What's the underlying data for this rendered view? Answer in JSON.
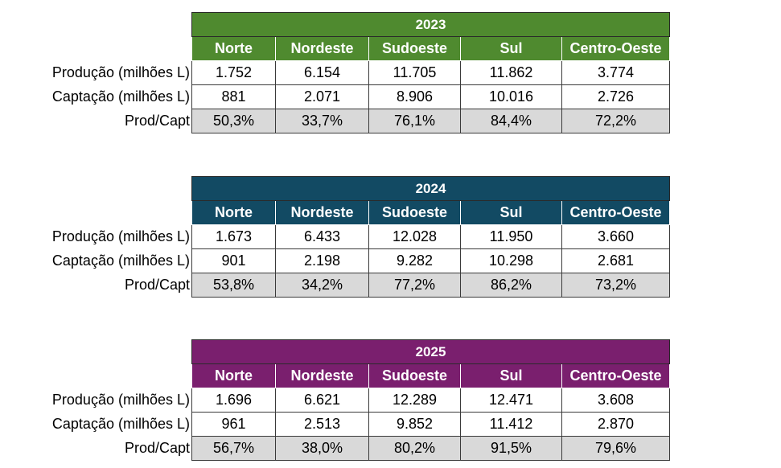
{
  "columns": [
    "Norte",
    "Nordeste",
    "Sudoeste",
    "Sul",
    "Centro-Oeste"
  ],
  "row_labels": {
    "producao": "Produção (milhões L)",
    "captacao": "Captação (milhões L)",
    "ratio": "Prod/Capt"
  },
  "colors": {
    "year_2023": "#4f8a2f",
    "year_2024": "#124a63",
    "year_2025": "#7a1f6e"
  },
  "tables": [
    {
      "year": "2023",
      "producao": [
        "1.752",
        "6.154",
        "11.705",
        "11.862",
        "3.774"
      ],
      "captacao": [
        "881",
        "2.071",
        "8.906",
        "10.016",
        "2.726"
      ],
      "ratio": [
        "50,3%",
        "33,7%",
        "76,1%",
        "84,4%",
        "72,2%"
      ]
    },
    {
      "year": "2024",
      "producao": [
        "1.673",
        "6.433",
        "12.028",
        "11.950",
        "3.660"
      ],
      "captacao": [
        "901",
        "2.198",
        "9.282",
        "10.298",
        "2.681"
      ],
      "ratio": [
        "53,8%",
        "34,2%",
        "77,2%",
        "86,2%",
        "73,2%"
      ]
    },
    {
      "year": "2025",
      "producao": [
        "1.696",
        "6.621",
        "12.289",
        "12.471",
        "3.608"
      ],
      "captacao": [
        "961",
        "2.513",
        "9.852",
        "11.412",
        "2.870"
      ],
      "ratio": [
        "56,7%",
        "38,0%",
        "80,2%",
        "91,5%",
        "79,6%"
      ]
    }
  ]
}
